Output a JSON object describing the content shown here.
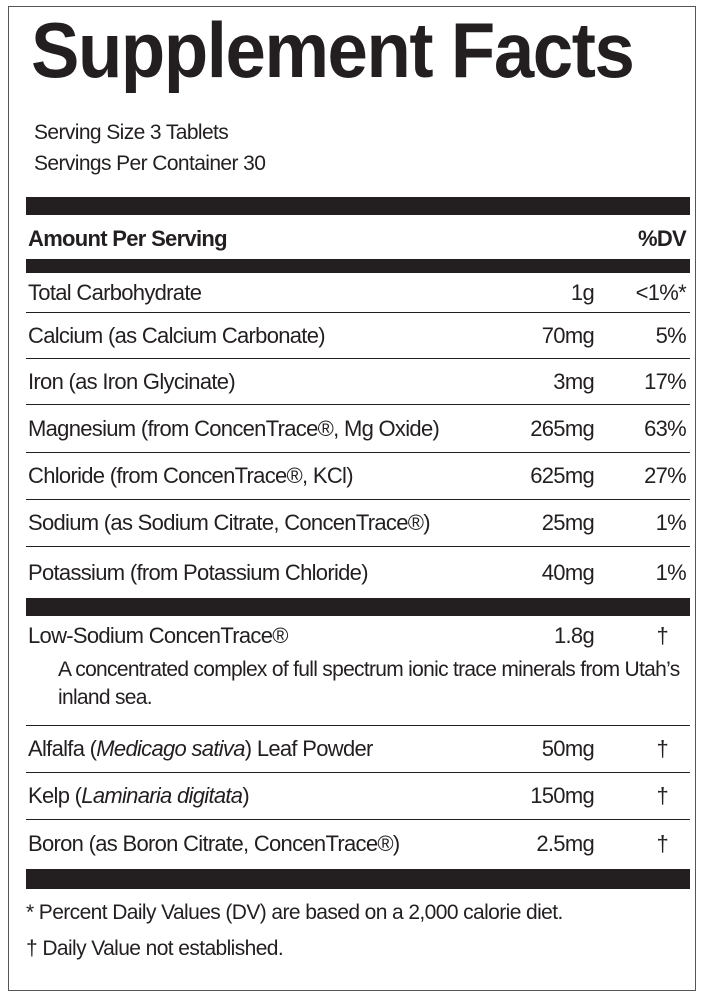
{
  "title": "Supplement Facts",
  "serving_size": "Serving Size 3 Tablets",
  "servings_per_container": "Servings Per Container 30",
  "header": {
    "amount": "Amount Per Serving",
    "dv": "%DV"
  },
  "nutrients": [
    {
      "name": "Total Carbohydrate",
      "amount": "1g",
      "dv": "<1%*"
    },
    {
      "name": "Calcium (as Calcium Carbonate)",
      "amount": "70mg",
      "dv": "5%"
    },
    {
      "name": "Iron (as Iron Glycinate)",
      "amount": "3mg",
      "dv": "17%"
    },
    {
      "name": "Magnesium (from ConcenTrace®, Mg Oxide)",
      "amount": "265mg",
      "dv": "63%"
    },
    {
      "name": "Chloride (from ConcenTrace®, KCl)",
      "amount": "625mg",
      "dv": "27%"
    },
    {
      "name": "Sodium (as Sodium Citrate, ConcenTrace®)",
      "amount": "25mg",
      "dv": "1%"
    },
    {
      "name": "Potassium (from Potassium Chloride)",
      "amount": "40mg",
      "dv": "1%"
    }
  ],
  "other": [
    {
      "name": "Low-Sodium ConcenTrace®",
      "amount": "1.8g",
      "dv": "†",
      "description": "A concentrated complex of full spectrum ionic trace minerals from Utah’s inland sea."
    },
    {
      "name_pre": "Alfalfa (",
      "name_italic": "Medicago sativa",
      "name_post": ") Leaf Powder",
      "amount": "50mg",
      "dv": "†"
    },
    {
      "name_pre": "Kelp (",
      "name_italic": "Laminaria digitata",
      "name_post": ")",
      "amount": "150mg",
      "dv": "†"
    },
    {
      "name": "Boron (as Boron Citrate, ConcenTrace®)",
      "amount": "2.5mg",
      "dv": "†"
    }
  ],
  "footnotes": [
    "* Percent Daily Values (DV) are based on a 2,000 calorie diet.",
    "† Daily Value not established."
  ]
}
